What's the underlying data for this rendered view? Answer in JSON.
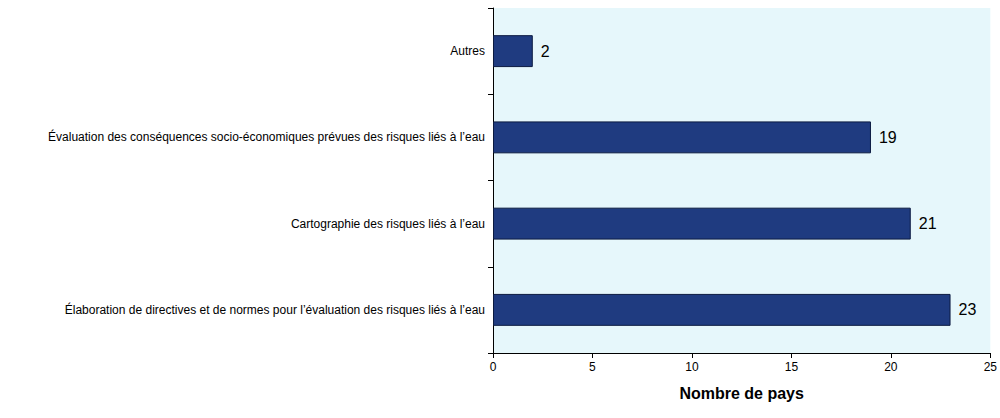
{
  "chart_data": {
    "type": "bar",
    "orientation": "horizontal",
    "categories": [
      "Autres",
      "Évaluation des conséquences socio-économiques prévues des risques liés à l’eau",
      "Cartographie des risques liés à l’eau",
      "Élaboration de directives et de normes pour l’évaluation des risques liés à l’eau"
    ],
    "values": [
      2,
      19,
      21,
      23
    ],
    "color": "#1f3b80",
    "x_label": "Nombre de pays",
    "xlim": [
      0,
      25
    ],
    "xticks": [
      0,
      5,
      10,
      15,
      20,
      25
    ],
    "grid": false,
    "data_labels": true
  }
}
